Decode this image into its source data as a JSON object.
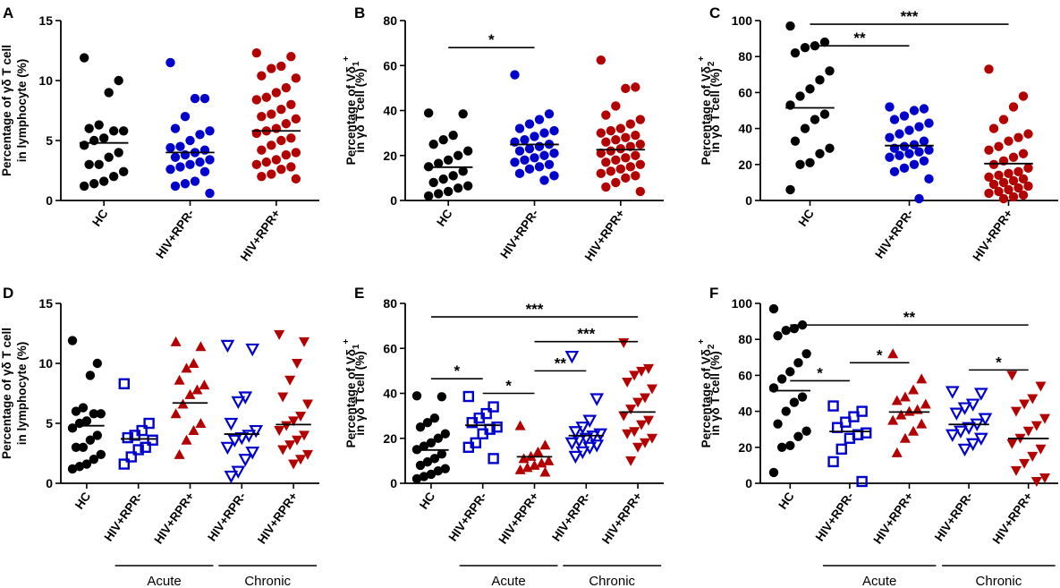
{
  "chart_data": [
    {
      "panel": "A",
      "type": "scatter",
      "ylabel_lines": [
        "Percentage of γδ T cell",
        "in lymphocyte (%)"
      ],
      "ylim": [
        0,
        15
      ],
      "yticks": [
        "0",
        "5",
        "10",
        "15"
      ],
      "categories": [
        "HC",
        "HIV+RPR-",
        "HIV+RPR+"
      ],
      "series": [
        {
          "name": "HC",
          "color": "#000000",
          "marker": "circle",
          "mean": 4.8,
          "values": [
            11.9,
            10.0,
            9.0,
            6.3,
            6.0,
            5.8,
            5.8,
            5.2,
            5.0,
            4.6,
            4.0,
            3.6,
            3.0,
            3.0,
            2.4,
            2.0,
            1.6,
            1.4,
            1.2
          ]
        },
        {
          "name": "HIV+RPR-",
          "color": "#0000cc",
          "marker": "circle",
          "mean": 4.0,
          "values": [
            11.5,
            8.5,
            8.5,
            7.0,
            6.0,
            5.8,
            5.5,
            5.0,
            4.5,
            4.4,
            4.2,
            4.0,
            3.8,
            3.6,
            3.4,
            3.2,
            3.0,
            2.8,
            2.6,
            2.4,
            1.6,
            1.4,
            1.2,
            0.6
          ]
        },
        {
          "name": "HIV+RPR+",
          "color": "#b30000",
          "marker": "circle",
          "mean": 5.8,
          "values": [
            12.3,
            12.0,
            11.2,
            11.0,
            10.4,
            10.2,
            9.4,
            9.0,
            8.6,
            8.4,
            8.0,
            7.6,
            7.2,
            7.0,
            6.8,
            6.4,
            6.0,
            5.8,
            5.6,
            5.2,
            5.0,
            4.6,
            4.2,
            4.0,
            3.8,
            3.4,
            3.2,
            3.0,
            2.8,
            2.6,
            2.2,
            2.0,
            1.8
          ]
        }
      ],
      "annotations": []
    },
    {
      "panel": "B",
      "type": "scatter",
      "ylabel_lines": [
        "Percentage of Vδ1+",
        "in γδ T cell (%)"
      ],
      "ylim": [
        0,
        80
      ],
      "yticks": [
        "0",
        "20",
        "40",
        "60",
        "80"
      ],
      "categories": [
        "HC",
        "HIV+RPR-",
        "HIV+RPR+"
      ],
      "series": [
        {
          "name": "HC",
          "color": "#000000",
          "marker": "circle",
          "mean": 14.8,
          "values": [
            38.9,
            38.5,
            29.0,
            27.0,
            25.0,
            22.0,
            20.0,
            18.0,
            16.5,
            15.0,
            13.0,
            11.0,
            9.5,
            8.0,
            6.5,
            5.5,
            4.0,
            3.0,
            2.0
          ]
        },
        {
          "name": "HIV+RPR-",
          "color": "#0000cc",
          "marker": "circle",
          "mean": 24.9,
          "values": [
            55.9,
            38.5,
            36.0,
            34.0,
            32.0,
            31.0,
            30.0,
            28.5,
            27.0,
            26.0,
            25.0,
            24.0,
            23.0,
            22.0,
            21.0,
            20.0,
            19.0,
            18.0,
            17.0,
            16.0,
            15.0,
            14.0,
            12.0,
            11.0,
            9.0
          ]
        },
        {
          "name": "HIV+RPR+",
          "color": "#b30000",
          "marker": "circle",
          "mean": 22.6,
          "values": [
            62.4,
            50.4,
            49.8,
            42.0,
            38.0,
            36.0,
            34.0,
            32.0,
            31.0,
            30.0,
            29.0,
            28.0,
            27.0,
            26.0,
            25.0,
            24.0,
            23.0,
            22.0,
            21.0,
            20.0,
            19.0,
            18.0,
            17.0,
            16.0,
            15.0,
            14.0,
            13.0,
            12.0,
            11.0,
            10.0,
            8.0,
            6.0,
            4.0
          ]
        }
      ],
      "annotations": [
        {
          "text": "*",
          "from": 0,
          "to": 1,
          "y": 68
        }
      ]
    },
    {
      "panel": "C",
      "type": "scatter",
      "ylabel_lines": [
        "Percentage of Vδ2+",
        "in γδ T cell (%)"
      ],
      "ylim": [
        0,
        100
      ],
      "yticks": [
        "0",
        "20",
        "40",
        "60",
        "80",
        "100"
      ],
      "categories": [
        "HC",
        "HIV+RPR-",
        "HIV+RPR+"
      ],
      "series": [
        {
          "name": "HC",
          "color": "#000000",
          "marker": "circle",
          "mean": 51.5,
          "values": [
            97.0,
            88.0,
            86.0,
            85.0,
            82.0,
            72.0,
            67.0,
            62.0,
            58.0,
            53.0,
            48.0,
            45.0,
            40.0,
            33.0,
            29.0,
            26.0,
            21.0,
            20.0,
            6.0
          ]
        },
        {
          "name": "HIV+RPR-",
          "color": "#0000cc",
          "marker": "circle",
          "mean": 30.5,
          "values": [
            52.0,
            51.0,
            50.0,
            47.0,
            45.0,
            43.0,
            41.0,
            39.0,
            37.0,
            35.0,
            33.0,
            31.0,
            30.0,
            29.0,
            28.0,
            27.0,
            26.0,
            25.0,
            24.0,
            22.0,
            20.0,
            18.0,
            16.0,
            12.0,
            1.0
          ]
        },
        {
          "name": "HIV+RPR+",
          "color": "#b30000",
          "marker": "circle",
          "mean": 20.5,
          "values": [
            73.0,
            58.0,
            52.0,
            45.0,
            40.0,
            37.0,
            35.0,
            33.0,
            30.0,
            28.0,
            26.0,
            24.0,
            22.0,
            20.0,
            18.0,
            16.0,
            15.0,
            14.0,
            13.0,
            12.0,
            11.0,
            10.0,
            9.0,
            8.0,
            7.0,
            6.0,
            5.0,
            4.0,
            3.0,
            2.0,
            1.0
          ]
        }
      ],
      "annotations": [
        {
          "text": "***",
          "from": 0,
          "to": 2,
          "y": 98
        },
        {
          "text": "**",
          "from": 0,
          "to": 1,
          "y": 86
        }
      ]
    },
    {
      "panel": "D",
      "type": "scatter",
      "ylabel_lines": [
        "Percentage of γδ T cell",
        "in lymphocyte (%)"
      ],
      "ylim": [
        0,
        15
      ],
      "yticks": [
        "0",
        "5",
        "10",
        "15"
      ],
      "categories": [
        "HC",
        "HIV+RPR-",
        "HIV+RPR+",
        "HIV+RPR-",
        "HIV+RPR+"
      ],
      "groups": [
        {
          "label": "Acute",
          "from": 1,
          "to": 2
        },
        {
          "label": "Chronic",
          "from": 3,
          "to": 4
        }
      ],
      "series": [
        {
          "name": "HC",
          "color": "#000000",
          "marker": "circle",
          "mean": 4.8,
          "values": [
            11.9,
            10.0,
            9.0,
            6.3,
            6.0,
            5.8,
            5.8,
            5.2,
            5.0,
            4.6,
            4.0,
            3.6,
            3.0,
            3.0,
            2.4,
            2.0,
            1.6,
            1.4,
            1.2
          ]
        },
        {
          "name": "Acute HIV+RPR-",
          "color": "#0000cc",
          "marker": "square",
          "mean": 3.7,
          "values": [
            8.3,
            5.0,
            4.4,
            4.0,
            3.8,
            3.6,
            3.0,
            2.8,
            2.2,
            1.6
          ]
        },
        {
          "name": "Acute HIV+RPR+",
          "color": "#b30000",
          "marker": "triangle-up",
          "mean": 6.7,
          "values": [
            11.8,
            11.4,
            10.0,
            9.6,
            8.6,
            8.2,
            7.8,
            7.4,
            6.6,
            5.8,
            5.0,
            4.4,
            3.6,
            2.4
          ]
        },
        {
          "name": "Chronic HIV+RPR-",
          "color": "#0000cc",
          "marker": "triangle-down",
          "mean": 4.1,
          "values": [
            11.5,
            11.2,
            7.2,
            6.8,
            5.0,
            4.4,
            4.0,
            3.8,
            3.6,
            3.0,
            2.6,
            2.0,
            1.0,
            0.6
          ]
        },
        {
          "name": "Chronic HIV+RPR+",
          "color": "#b30000",
          "marker": "triangle-down",
          "mean": 4.9,
          "values": [
            12.4,
            11.8,
            10.0,
            8.6,
            7.2,
            6.6,
            5.6,
            5.2,
            4.8,
            4.4,
            4.0,
            3.6,
            3.2,
            2.8,
            2.4,
            2.0,
            1.6
          ]
        }
      ],
      "annotations": []
    },
    {
      "panel": "E",
      "type": "scatter",
      "ylabel_lines": [
        "Percentage of Vδ1+",
        "in γδ T cell (%)"
      ],
      "ylim": [
        0,
        80
      ],
      "yticks": [
        "0",
        "20",
        "40",
        "60",
        "80"
      ],
      "categories": [
        "HC",
        "HIV+RPR-",
        "HIV+RPR+",
        "HIV+RPR-",
        "HIV+RPR+"
      ],
      "groups": [
        {
          "label": "Acute",
          "from": 1,
          "to": 2
        },
        {
          "label": "Chronic",
          "from": 3,
          "to": 4
        }
      ],
      "series": [
        {
          "name": "HC",
          "color": "#000000",
          "marker": "circle",
          "mean": 14.8,
          "values": [
            38.9,
            38.5,
            29.0,
            27.0,
            25.0,
            22.0,
            20.0,
            18.0,
            16.5,
            15.0,
            13.0,
            11.0,
            9.5,
            8.0,
            6.5,
            5.5,
            4.0,
            3.0,
            2.0
          ]
        },
        {
          "name": "Acute HIV+RPR-",
          "color": "#0000cc",
          "marker": "square",
          "mean": 25.8,
          "values": [
            38.6,
            34.0,
            31.0,
            29.0,
            27.0,
            25.0,
            24.0,
            22.0,
            18.0,
            16.0,
            11.0
          ]
        },
        {
          "name": "Acute HIV+RPR+",
          "color": "#b30000",
          "marker": "triangle-up",
          "mean": 11.8,
          "values": [
            25.6,
            17.0,
            14.0,
            12.0,
            11.0,
            10.0,
            9.0,
            8.0,
            7.0,
            6.0,
            5.0
          ]
        },
        {
          "name": "Chronic HIV+RPR-",
          "color": "#0000cc",
          "marker": "triangle-down",
          "mean": 21.2,
          "values": [
            56.5,
            37.6,
            28.0,
            25.0,
            23.0,
            22.0,
            21.0,
            20.0,
            19.0,
            18.0,
            17.0,
            16.0,
            14.0,
            12.0
          ]
        },
        {
          "name": "Chronic HIV+RPR+",
          "color": "#b30000",
          "marker": "triangle-down",
          "mean": 31.7,
          "values": [
            62.5,
            51.0,
            49.8,
            48.0,
            45.0,
            42.0,
            38.0,
            36.0,
            33.0,
            30.0,
            28.0,
            26.0,
            23.0,
            22.0,
            20.0,
            18.0,
            16.0,
            10.0
          ]
        }
      ],
      "annotations": [
        {
          "text": "***",
          "from": 0,
          "to": 4,
          "y": 74
        },
        {
          "text": "***",
          "from": 2,
          "to": 4,
          "y": 63
        },
        {
          "text": "*",
          "from": 0,
          "to": 1,
          "y": 46.5
        },
        {
          "text": "**",
          "from": 2,
          "to": 3,
          "y": 50
        },
        {
          "text": "*",
          "from": 1,
          "to": 2,
          "y": 40
        }
      ]
    },
    {
      "panel": "F",
      "type": "scatter",
      "ylabel_lines": [
        "Percentage of Vδ2+",
        "in γδ T cell (%)"
      ],
      "ylim": [
        0,
        100
      ],
      "yticks": [
        "0",
        "20",
        "40",
        "60",
        "80",
        "100"
      ],
      "categories": [
        "HC",
        "HIV+RPR-",
        "HIV+RPR+",
        "HIV+RPR-",
        "HIV+RPR+"
      ],
      "groups": [
        {
          "label": "Acute",
          "from": 1,
          "to": 2
        },
        {
          "label": "Chronic",
          "from": 3,
          "to": 4
        }
      ],
      "series": [
        {
          "name": "HC",
          "color": "#000000",
          "marker": "circle",
          "mean": 51.5,
          "values": [
            97.0,
            88.0,
            86.0,
            85.0,
            82.0,
            72.0,
            67.0,
            62.0,
            58.0,
            53.0,
            48.0,
            45.0,
            40.0,
            33.0,
            29.0,
            26.0,
            21.0,
            20.0,
            6.0
          ]
        },
        {
          "name": "Acute HIV+RPR-",
          "color": "#0000cc",
          "marker": "square",
          "mean": 28.8,
          "values": [
            43.0,
            40.0,
            37.0,
            34.0,
            31.0,
            28.0,
            27.0,
            25.0,
            19.0,
            12.0,
            1.0
          ]
        },
        {
          "name": "Acute HIV+RPR+",
          "color": "#b30000",
          "marker": "triangle-up",
          "mean": 39.6,
          "values": [
            72.0,
            58.0,
            52.0,
            48.0,
            46.0,
            44.0,
            41.0,
            40.0,
            38.0,
            35.0,
            33.0,
            29.0,
            25.0,
            17.0
          ]
        },
        {
          "name": "Chronic HIV+RPR-",
          "color": "#0000cc",
          "marker": "triangle-down",
          "mean": 32.7,
          "values": [
            51.0,
            50.0,
            44.0,
            42.0,
            39.0,
            36.0,
            33.0,
            31.0,
            29.0,
            27.0,
            25.0,
            22.0,
            19.0
          ]
        },
        {
          "name": "Chronic HIV+RPR+",
          "color": "#b30000",
          "marker": "triangle-down",
          "mean": 24.9,
          "values": [
            60.0,
            54.0,
            47.0,
            44.0,
            40.0,
            36.0,
            32.0,
            29.0,
            25.0,
            22.0,
            19.0,
            15.0,
            11.0,
            7.0,
            3.0,
            1.0
          ]
        }
      ],
      "annotations": [
        {
          "text": "**",
          "from": 0,
          "to": 4,
          "y": 88
        },
        {
          "text": "*",
          "from": 1,
          "to": 2,
          "y": 67
        },
        {
          "text": "*",
          "from": 0,
          "to": 1,
          "y": 57
        },
        {
          "text": "*",
          "from": 3,
          "to": 4,
          "y": 63
        }
      ]
    }
  ]
}
